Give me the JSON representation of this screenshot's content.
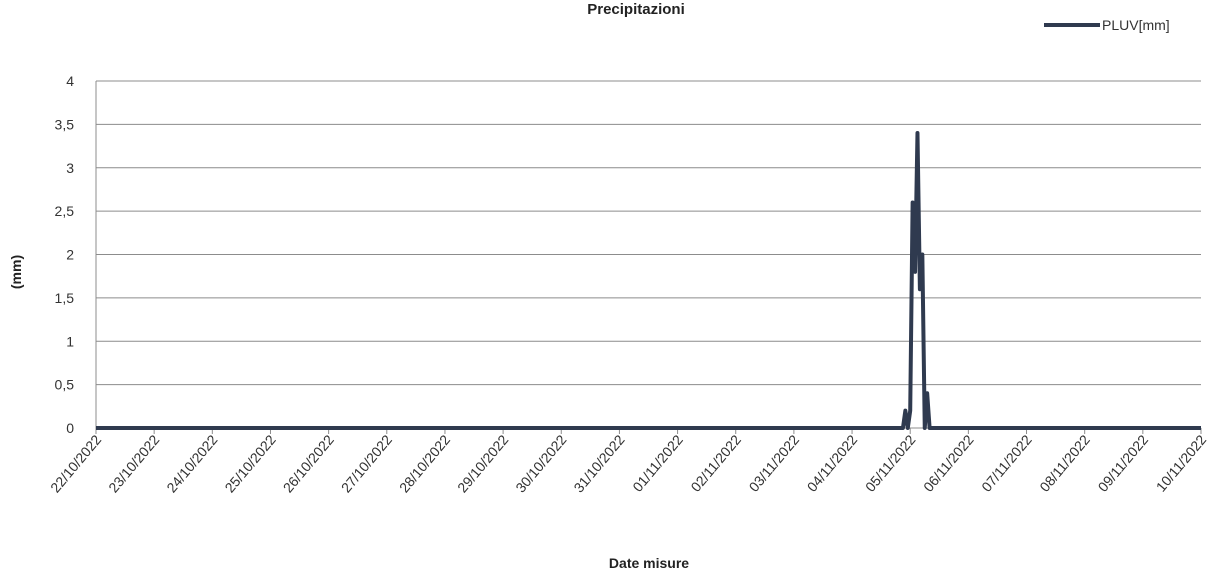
{
  "chart_data": {
    "type": "line",
    "title": "Precipitazioni",
    "xlabel": "Date misure",
    "ylabel": "(mm)",
    "ylim": [
      0,
      4
    ],
    "grid": true,
    "legend_position": "top-right",
    "y_ticks": [
      "0",
      "0,5",
      "1",
      "1,5",
      "2",
      "2,5",
      "3",
      "3,5",
      "4"
    ],
    "y_tick_values": [
      0,
      0.5,
      1,
      1.5,
      2,
      2.5,
      3,
      3.5,
      4
    ],
    "x_ticks": [
      "22/10/2022",
      "23/10/2022",
      "24/10/2022",
      "25/10/2022",
      "26/10/2022",
      "27/10/2022",
      "28/10/2022",
      "29/10/2022",
      "30/10/2022",
      "31/10/2022",
      "01/11/2022",
      "02/11/2022",
      "03/11/2022",
      "04/11/2022",
      "05/11/2022",
      "06/11/2022",
      "07/11/2022",
      "08/11/2022",
      "09/11/2022",
      "10/11/2022"
    ],
    "x_range": [
      "2022-10-22 00:00",
      "2022-11-10 00:00"
    ],
    "series": [
      {
        "name": "PLUV[mm]",
        "color": "#2f3a4f",
        "points": [
          [
            "2022-10-22 00:00",
            0
          ],
          [
            "2022-11-04 21:00",
            0
          ],
          [
            "2022-11-04 22:00",
            0.2
          ],
          [
            "2022-11-04 23:00",
            0
          ],
          [
            "2022-11-05 00:00",
            0.2
          ],
          [
            "2022-11-05 01:00",
            2.6
          ],
          [
            "2022-11-05 02:00",
            1.8
          ],
          [
            "2022-11-05 03:00",
            3.4
          ],
          [
            "2022-11-05 04:00",
            1.6
          ],
          [
            "2022-11-05 05:00",
            2.0
          ],
          [
            "2022-11-05 06:00",
            0
          ],
          [
            "2022-11-05 07:00",
            0.4
          ],
          [
            "2022-11-05 08:00",
            0
          ],
          [
            "2022-11-10 00:00",
            0
          ]
        ]
      }
    ]
  }
}
